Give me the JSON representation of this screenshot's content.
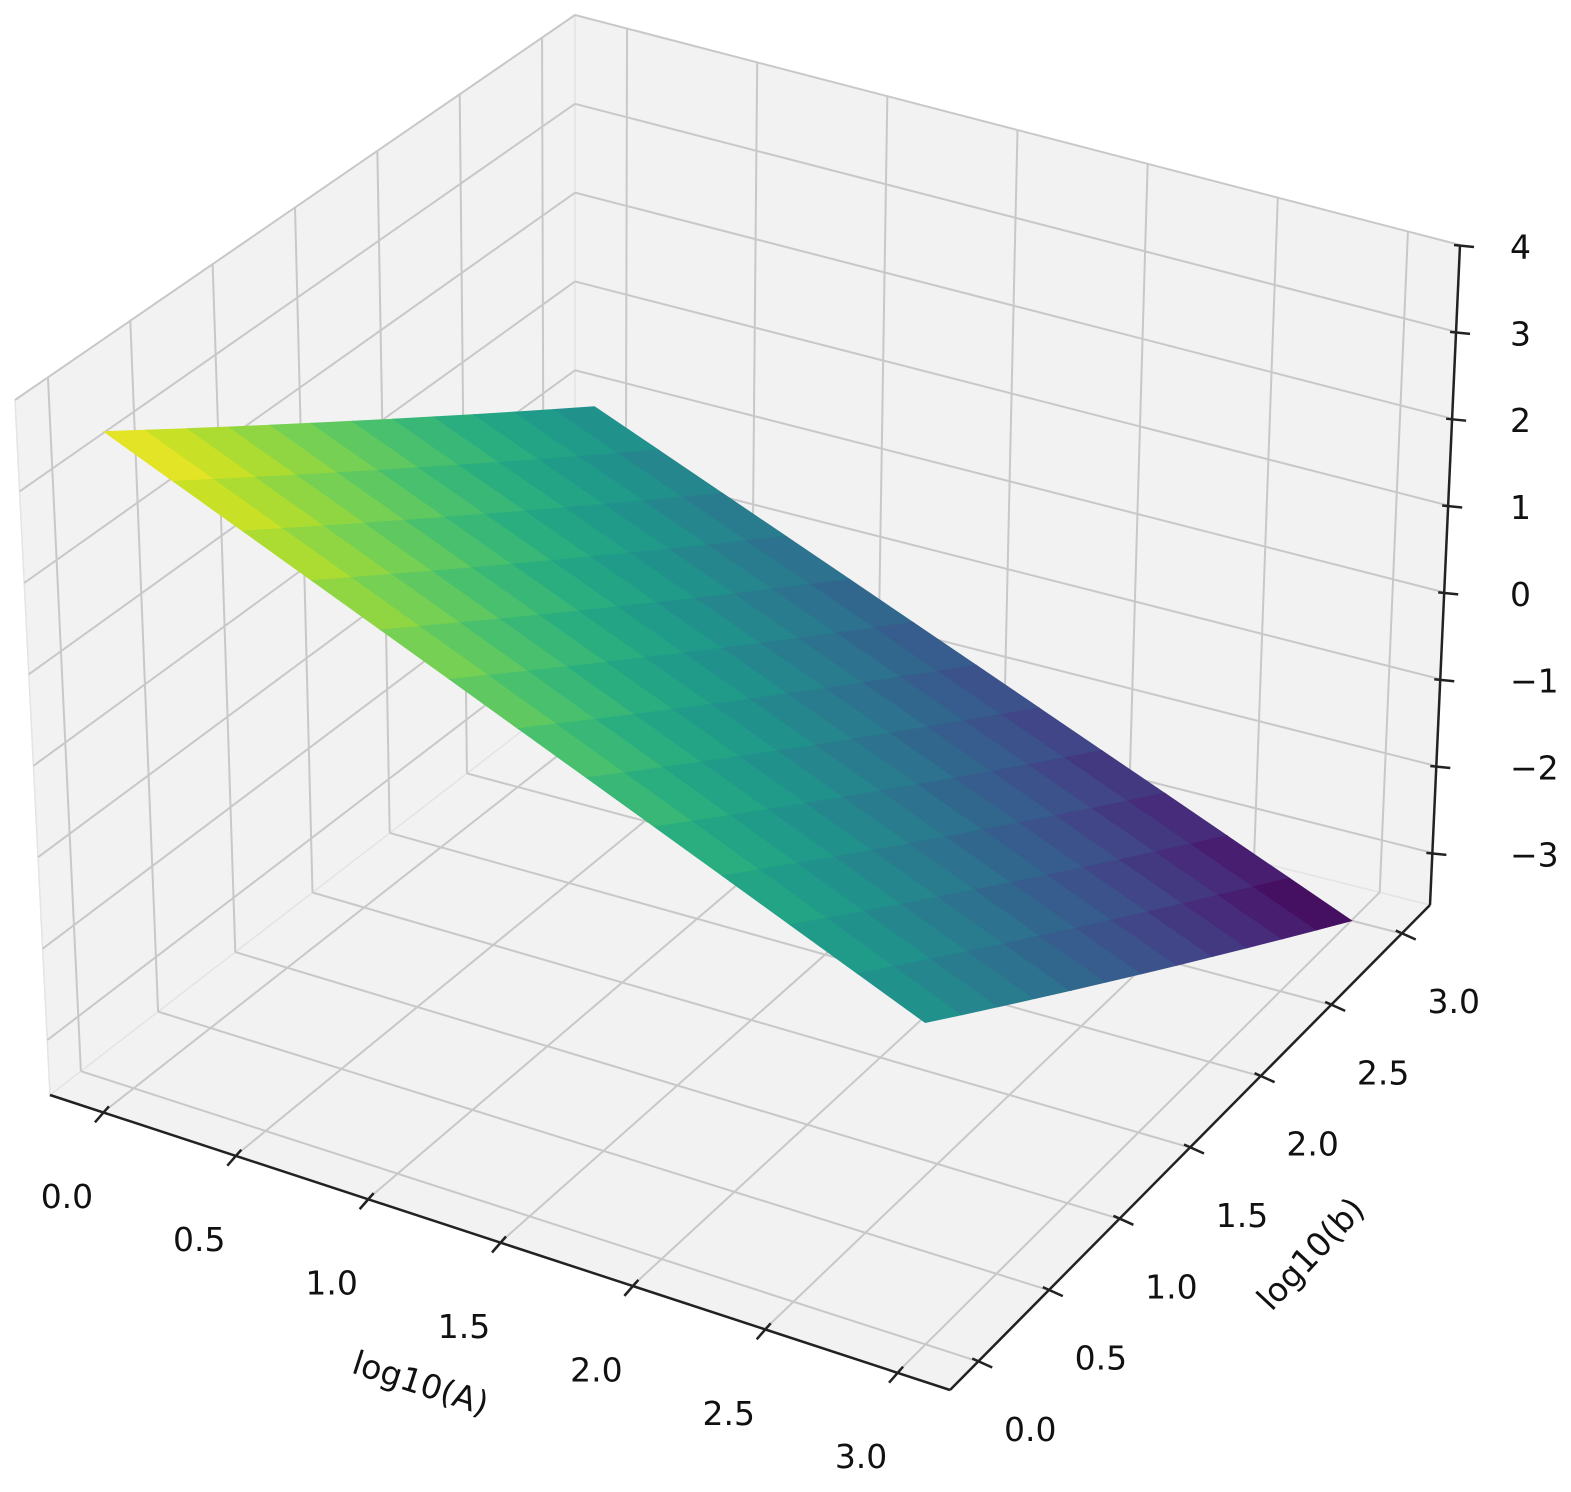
{
  "chart_data": {
    "type": "surface",
    "xlabel": "log10(A)",
    "ylabel": "log10(b)",
    "colormap": "viridis",
    "grid": true,
    "x": [
      0,
      0.25,
      0.5,
      0.75,
      1,
      1.25,
      1.5,
      1.75,
      2,
      2.25,
      2.5,
      2.75,
      3
    ],
    "y": [
      0,
      0.25,
      0.5,
      0.75,
      1,
      1.25,
      1.5,
      1.75,
      2,
      2.25,
      2.5,
      2.75,
      3
    ],
    "z": [
      [
        3.6,
        3.3,
        3.0,
        2.7,
        2.4,
        2.1,
        1.8,
        1.5,
        1.2,
        0.9,
        0.6,
        0.3,
        0
      ],
      [
        3.3,
        3.0,
        2.7,
        2.4,
        2.1,
        1.8,
        1.5,
        1.2,
        0.9,
        0.6,
        0.3,
        0,
        -0.3
      ],
      [
        3.0,
        2.7,
        2.4,
        2.1,
        1.8,
        1.5,
        1.2,
        0.9,
        0.6,
        0.3,
        0,
        -0.3,
        -0.6
      ],
      [
        2.7,
        2.4,
        2.1,
        1.8,
        1.5,
        1.2,
        0.9,
        0.6,
        0.3,
        0,
        -0.3,
        -0.6,
        -0.9
      ],
      [
        2.4,
        2.1,
        1.8,
        1.5,
        1.2,
        0.9,
        0.6,
        0.3,
        0,
        -0.3,
        -0.6,
        -0.9,
        -1.2
      ],
      [
        2.1,
        1.8,
        1.5,
        1.2,
        0.9,
        0.6,
        0.3,
        0,
        -0.3,
        -0.6,
        -0.9,
        -1.2,
        -1.5
      ],
      [
        1.8,
        1.5,
        1.2,
        0.9,
        0.6,
        0.3,
        0,
        -0.3,
        -0.6,
        -0.9,
        -1.2,
        -1.5,
        -1.8
      ],
      [
        1.5,
        1.2,
        0.9,
        0.6,
        0.3,
        0,
        -0.3,
        -0.6,
        -0.9,
        -1.2,
        -1.5,
        -1.8,
        -2.1
      ],
      [
        1.2,
        0.9,
        0.6,
        0.3,
        0,
        -0.3,
        -0.6,
        -0.9,
        -1.2,
        -1.5,
        -1.8,
        -2.1,
        -2.4
      ],
      [
        0.9,
        0.6,
        0.3,
        0,
        -0.3,
        -0.6,
        -0.9,
        -1.2,
        -1.5,
        -1.8,
        -2.1,
        -2.4,
        -2.7
      ],
      [
        0.6,
        0.3,
        0,
        -0.3,
        -0.6,
        -0.9,
        -1.2,
        -1.5,
        -1.8,
        -2.1,
        -2.4,
        -2.7,
        -3.0
      ],
      [
        0.3,
        0,
        -0.3,
        -0.6,
        -0.9,
        -1.2,
        -1.5,
        -1.8,
        -2.1,
        -2.4,
        -2.7,
        -3.0,
        -3.3
      ],
      [
        0,
        -0.3,
        -0.6,
        -0.9,
        -1.2,
        -1.5,
        -1.8,
        -2.1,
        -2.4,
        -2.7,
        -3.0,
        -3.3,
        -3.6
      ]
    ],
    "xlim": [
      -0.2,
      3.2
    ],
    "ylim": [
      -0.2,
      3.2
    ],
    "zlim": [
      -3.6,
      4.0
    ],
    "xticks": [
      {
        "value": 0,
        "label": "0.0"
      },
      {
        "value": 0.5,
        "label": "0.5"
      },
      {
        "value": 1,
        "label": "1.0"
      },
      {
        "value": 1.5,
        "label": "1.5"
      },
      {
        "value": 2,
        "label": "2.0"
      },
      {
        "value": 2.5,
        "label": "2.5"
      },
      {
        "value": 3,
        "label": "3.0"
      }
    ],
    "yticks": [
      {
        "value": 0,
        "label": "0.0"
      },
      {
        "value": 0.5,
        "label": "0.5"
      },
      {
        "value": 1,
        "label": "1.0"
      },
      {
        "value": 1.5,
        "label": "1.5"
      },
      {
        "value": 2,
        "label": "2.0"
      },
      {
        "value": 2.5,
        "label": "2.5"
      },
      {
        "value": 3,
        "label": "3.0"
      }
    ],
    "zticks": [
      {
        "value": -3,
        "label": "−3"
      },
      {
        "value": -2,
        "label": "−2"
      },
      {
        "value": -1,
        "label": "−1"
      },
      0,
      1,
      2,
      3,
      4
    ]
  }
}
